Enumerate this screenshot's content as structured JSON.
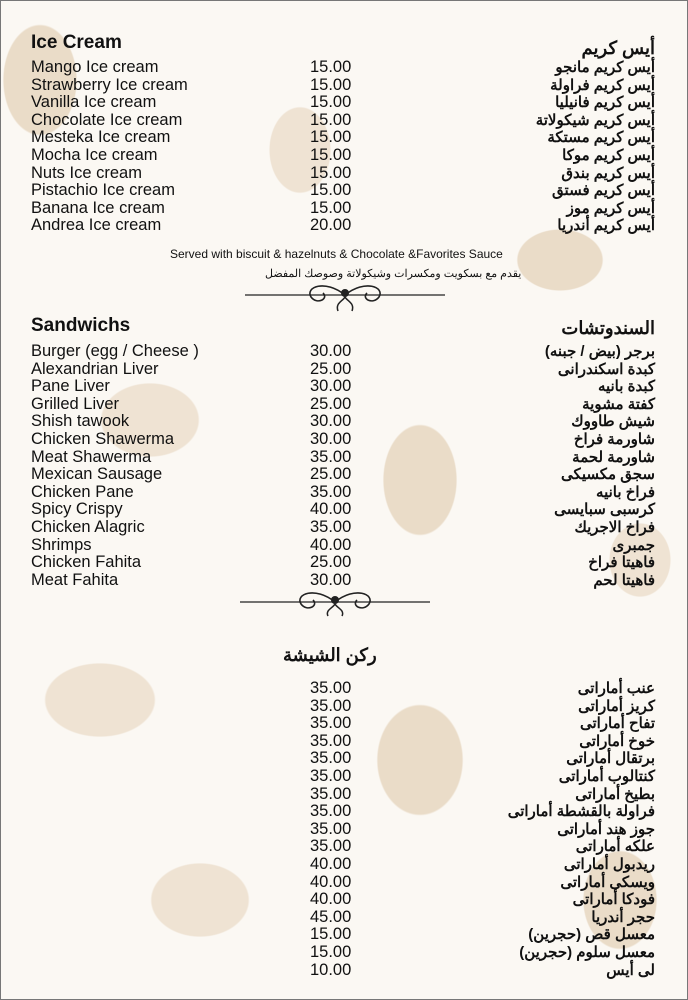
{
  "ice_cream": {
    "title_en": "Ice Cream",
    "title_ar": "أيس كريم",
    "items": [
      {
        "en": "Mango Ice cream",
        "price": "15.00",
        "ar": "أيس كريم مانجو"
      },
      {
        "en": "Strawberry Ice cream",
        "price": "15.00",
        "ar": "أيس كريم فراولة"
      },
      {
        "en": "Vanilla Ice cream",
        "price": "15.00",
        "ar": "أيس كريم فانيليا"
      },
      {
        "en": "Chocolate Ice cream",
        "price": "15.00",
        "ar": "أيس كريم شيكولاتة"
      },
      {
        "en": "Mesteka Ice cream",
        "price": "15.00",
        "ar": "أيس كريم مستكة"
      },
      {
        "en": "Mocha Ice cream",
        "price": "15.00",
        "ar": "أيس كريم موكا"
      },
      {
        "en": "Nuts Ice cream",
        "price": "15.00",
        "ar": "أيس كريم بندق"
      },
      {
        "en": "Pistachio Ice cream",
        "price": "15.00",
        "ar": "أيس كريم فستق"
      },
      {
        "en": "Banana Ice cream",
        "price": "15.00",
        "ar": "أيس كريم موز"
      },
      {
        "en": "Andrea Ice cream",
        "price": "20.00",
        "ar": "أيس كريم أندريا"
      }
    ],
    "note_en": "Served with biscuit & hazelnuts & Chocolate &Favorites Sauce",
    "note_ar": "يقدم مع بسكويت ومكسرات وشيكولاتة وصوصك المفضل"
  },
  "sandwiches": {
    "title_en": "Sandwichs",
    "title_ar": "السندوتشات",
    "items": [
      {
        "en": "Burger (egg / Cheese )",
        "price": "30.00",
        "ar": "برجر (بيض / جبنه)"
      },
      {
        "en": "Alexandrian Liver",
        "price": "25.00",
        "ar": "كبدة اسكندرانى"
      },
      {
        "en": "Pane Liver",
        "price": "30.00",
        "ar": "كبدة بانيه"
      },
      {
        "en": "Grilled Liver",
        "price": "25.00",
        "ar": "كفتة مشوية"
      },
      {
        "en": "Shish tawook",
        "price": "30.00",
        "ar": "شيش طاووك"
      },
      {
        "en": "Chicken Shawerma",
        "price": "30.00",
        "ar": "شاورمة فراخ"
      },
      {
        "en": "Meat Shawerma",
        "price": "35.00",
        "ar": "شاورمة لحمة"
      },
      {
        "en": "Mexican Sausage",
        "price": "25.00",
        "ar": "سجق مكسيكى"
      },
      {
        "en": "Chicken Pane",
        "price": "35.00",
        "ar": "فراخ بانيه"
      },
      {
        "en": "Spicy Crispy",
        "price": "40.00",
        "ar": "كرسبى سبايسى"
      },
      {
        "en": "Chicken Alagric",
        "price": "35.00",
        "ar": "فراخ الاجريك"
      },
      {
        "en": "Shrimps",
        "price": "40.00",
        "ar": "جمبرى"
      },
      {
        "en": "Chicken Fahita",
        "price": "25.00",
        "ar": "فاهيتا فراخ"
      },
      {
        "en": "Meat Fahita",
        "price": "30.00",
        "ar": "فاهيتا لحم"
      }
    ]
  },
  "shisha": {
    "title_ar": "ركن الشيشة",
    "items": [
      {
        "price": "35.00",
        "ar": "عنب أماراتى"
      },
      {
        "price": "35.00",
        "ar": "كريز أماراتى"
      },
      {
        "price": "35.00",
        "ar": "تفاح أماراتى"
      },
      {
        "price": "35.00",
        "ar": "خوخ أماراتى"
      },
      {
        "price": "35.00",
        "ar": "برتقال أماراتى"
      },
      {
        "price": "35.00",
        "ar": "كنتالوب أماراتى"
      },
      {
        "price": "35.00",
        "ar": "بطيخ أماراتى"
      },
      {
        "price": "35.00",
        "ar": "فراولة بالقشطة أماراتى"
      },
      {
        "price": "35.00",
        "ar": "جوز هند أماراتى"
      },
      {
        "price": "35.00",
        "ar": "علكه أماراتى"
      },
      {
        "price": "40.00",
        "ar": "ريدبول أماراتى"
      },
      {
        "price": "40.00",
        "ar": "ويسكى أماراتى"
      },
      {
        "price": "40.00",
        "ar": "فودكا أماراتى"
      },
      {
        "price": "45.00",
        "ar": "حجر أندريا"
      },
      {
        "price": "15.00",
        "ar": "معسل قص (حجرين)"
      },
      {
        "price": "15.00",
        "ar": "معسل سلوم (حجرين)"
      },
      {
        "price": "10.00",
        "ar": "لى أيس"
      }
    ]
  }
}
